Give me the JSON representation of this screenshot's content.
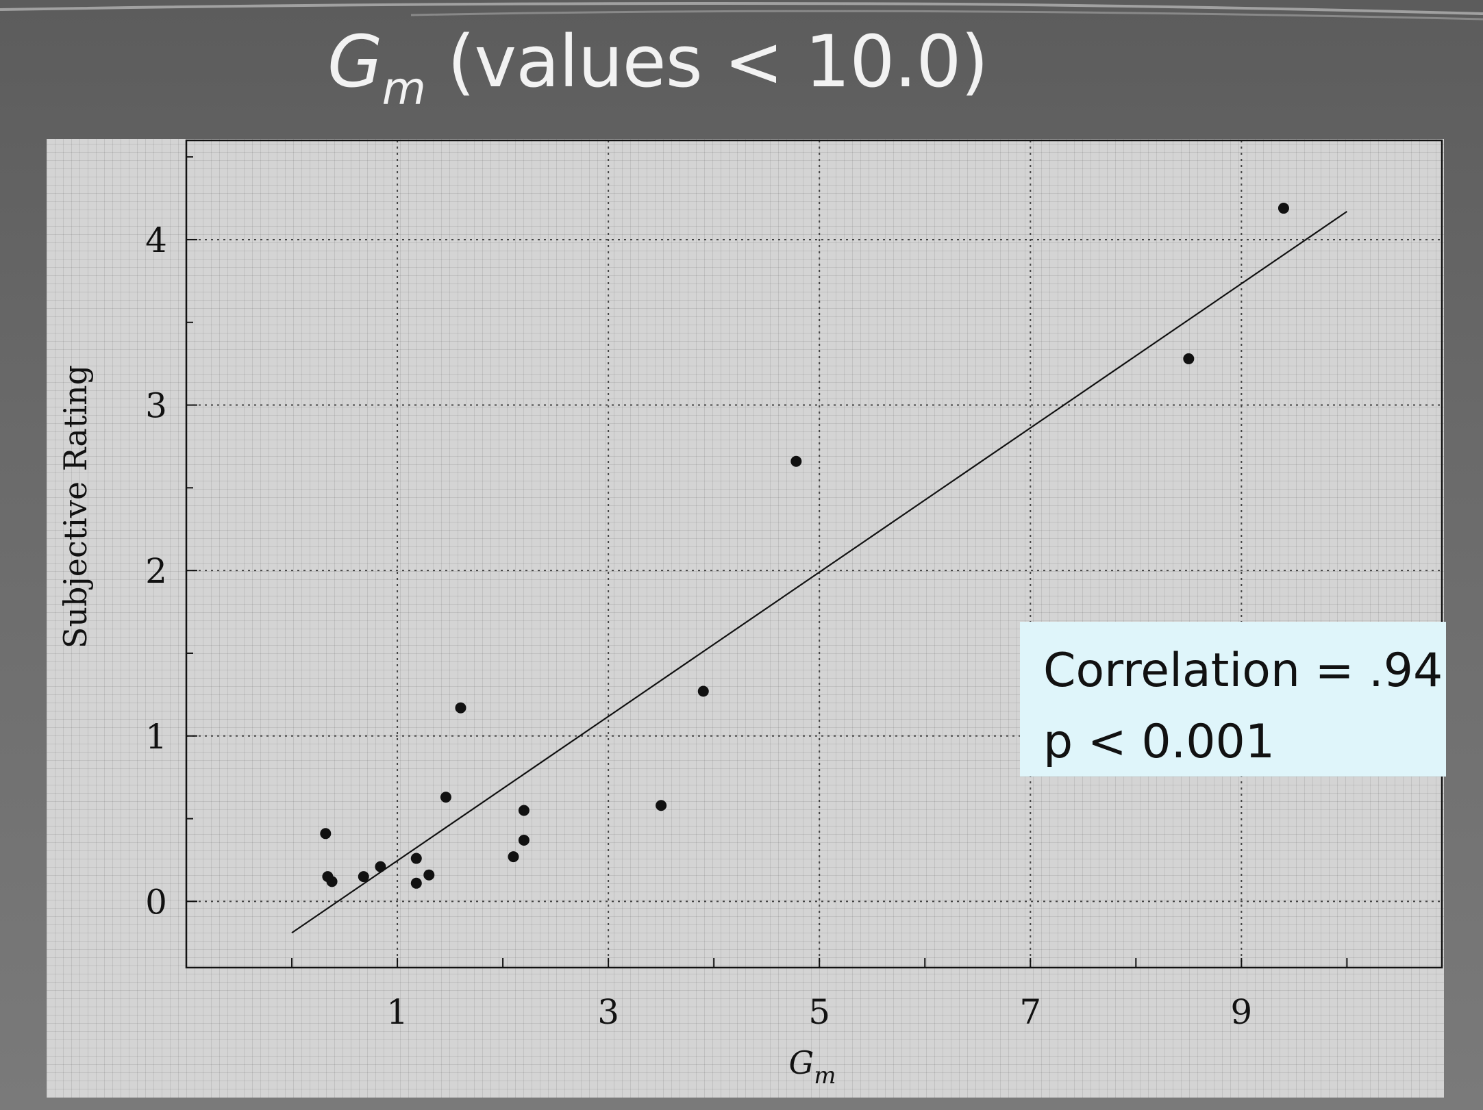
{
  "slide": {
    "title_symbol": "G",
    "title_subscript": "m",
    "title_rest": " (values < 10.0)"
  },
  "annotation": {
    "line1": "Correlation = .94",
    "line2": "p < 0.001"
  },
  "chart_data": {
    "type": "scatter",
    "title": "",
    "xlabel": "G",
    "xlabel_subscript": "m",
    "ylabel": "Subjective Rating",
    "xlim": [
      -1,
      10.9
    ],
    "ylim": [
      -0.4,
      4.6
    ],
    "xticks": [
      1,
      3,
      5,
      7,
      9
    ],
    "yticks": [
      0,
      1,
      2,
      3,
      4
    ],
    "grid": true,
    "points": [
      {
        "x": 0.32,
        "y": 0.41
      },
      {
        "x": 0.34,
        "y": 0.15
      },
      {
        "x": 0.38,
        "y": 0.12
      },
      {
        "x": 0.68,
        "y": 0.15
      },
      {
        "x": 0.84,
        "y": 0.21
      },
      {
        "x": 1.18,
        "y": 0.26
      },
      {
        "x": 1.18,
        "y": 0.11
      },
      {
        "x": 1.3,
        "y": 0.16
      },
      {
        "x": 1.46,
        "y": 0.63
      },
      {
        "x": 1.6,
        "y": 1.17
      },
      {
        "x": 2.1,
        "y": 0.27
      },
      {
        "x": 2.2,
        "y": 0.55
      },
      {
        "x": 2.2,
        "y": 0.37
      },
      {
        "x": 3.5,
        "y": 0.58
      },
      {
        "x": 3.9,
        "y": 1.27
      },
      {
        "x": 4.78,
        "y": 2.66
      },
      {
        "x": 8.5,
        "y": 3.28
      },
      {
        "x": 9.4,
        "y": 4.19
      }
    ],
    "fit_line": {
      "x": [
        0.0,
        10.0
      ],
      "y": [
        -0.19,
        4.17
      ]
    }
  }
}
